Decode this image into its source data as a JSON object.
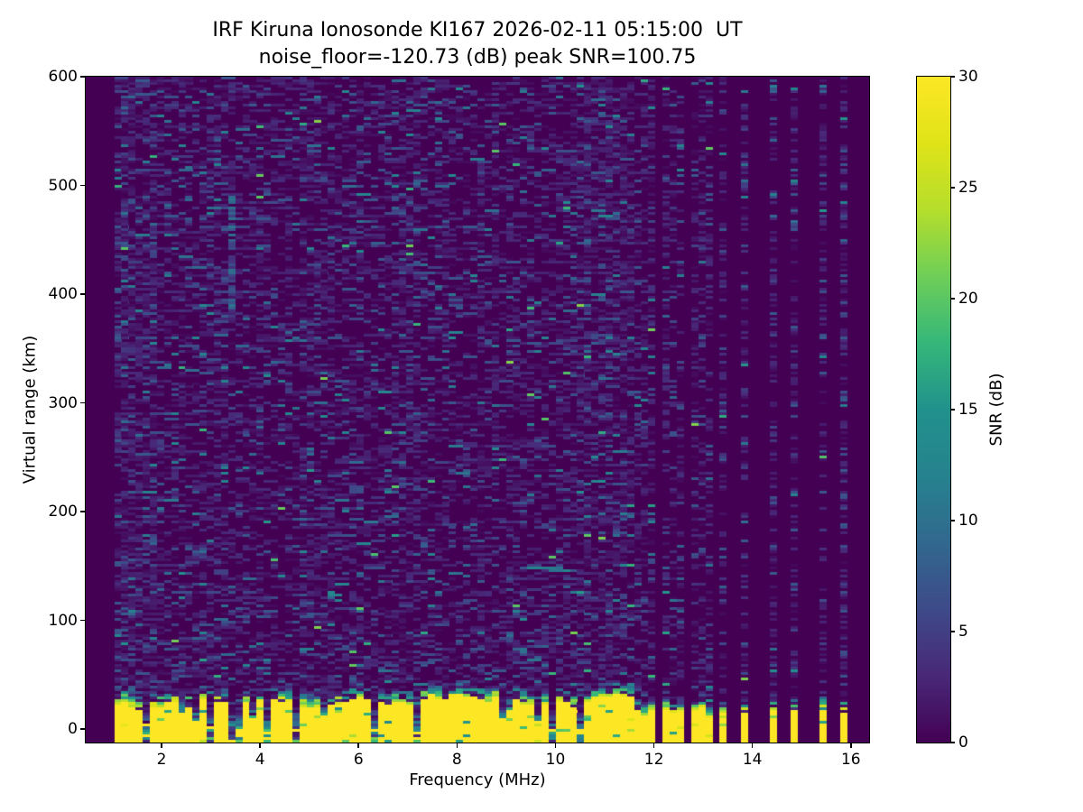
{
  "title": {
    "line1": "IRF Kiruna Ionosonde KI167 2026-02-11 05:15:00  UT",
    "line2": "noise_floor=-120.73 (dB) peak SNR=100.75"
  },
  "axes": {
    "xlabel": "Frequency (MHz)",
    "ylabel": "Virtual range (km)",
    "x_ticks": [
      2,
      4,
      6,
      8,
      10,
      12,
      14,
      16
    ],
    "y_ticks": [
      0,
      100,
      200,
      300,
      400,
      500,
      600
    ],
    "xlim": [
      0.46,
      16.37
    ],
    "ylim": [
      -12.4,
      600
    ]
  },
  "colorbar": {
    "label": "SNR (dB)",
    "ticks": [
      0,
      5,
      10,
      15,
      20,
      25,
      30
    ],
    "vmin": 0,
    "vmax": 30,
    "colormap": "viridis",
    "gradient_stops": [
      "#440154",
      "#482878",
      "#3e4a89",
      "#31688e",
      "#26828e",
      "#21918c",
      "#35b779",
      "#6ece58",
      "#b5de2b",
      "#dfe318",
      "#fde725"
    ]
  },
  "chart_data": {
    "type": "heatmap",
    "x_unit": "MHz",
    "y_unit": "km",
    "value_unit": "dB SNR",
    "value_range": [
      0,
      30
    ],
    "noise_floor_db": -120.73,
    "peak_snr_db": 100.75,
    "grid": {
      "ncols": 110,
      "nrows": 246
    },
    "sweep": {
      "continuous_mhz": [
        0.98,
        11.57
      ],
      "stripe_frequencies_mhz": [
        11.65,
        11.84,
        12.03,
        12.22,
        12.41,
        12.6,
        12.79,
        12.93,
        13.05,
        13.34,
        13.84,
        14.39,
        14.9,
        15.36,
        15.85
      ]
    },
    "ground_clutter": {
      "saturated_value_db": 30,
      "saturated_top_km": 24,
      "transition_thickness_km": 15,
      "bottom_km": -12.4
    },
    "deep_notches_mhz": [
      1.63,
      2.95,
      3.5,
      3.62,
      4.1,
      4.68,
      6.25,
      7.25,
      9.9,
      10.48
    ],
    "background_noise": {
      "mean_db": 1.8,
      "speckle_density": 0.4
    },
    "vertical_streaks": [
      {
        "f_mhz": 3.45,
        "range_km": [
          380,
          490
        ],
        "value_db": 7
      }
    ],
    "seed": 7
  }
}
